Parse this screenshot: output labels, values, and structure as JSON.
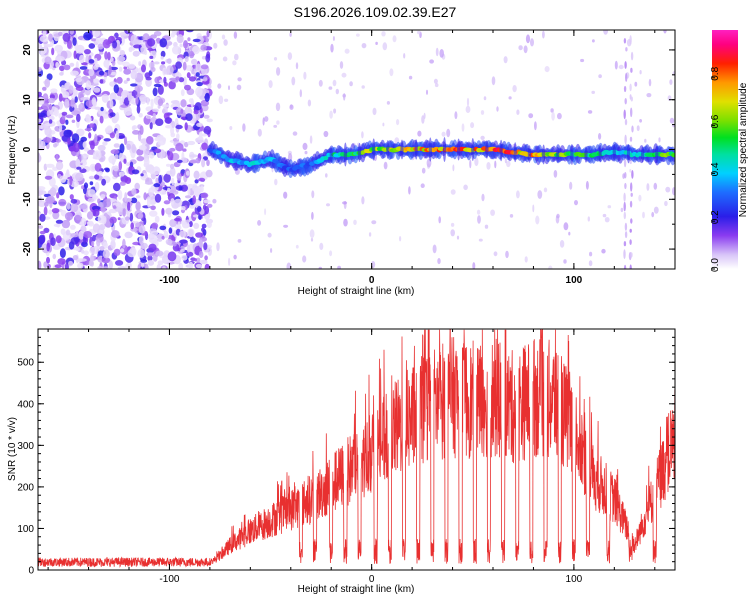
{
  "title": "S196.2026.109.02.39.E27",
  "chart_data": [
    {
      "type": "heatmap",
      "name": "spectrogram",
      "xlabel": "Height of straight line (km)",
      "ylabel": "Frequency (Hz)",
      "xlim": [
        -165,
        150
      ],
      "ylim": [
        -24,
        24
      ],
      "xticks": [
        -100,
        0,
        100
      ],
      "xtick_labels": [
        "-100",
        "0",
        "100"
      ],
      "yticks": [
        -20,
        -10,
        0,
        10,
        20
      ],
      "ytick_labels": [
        "-20",
        "-10",
        "0",
        "10",
        "20"
      ],
      "noise_region_x": [
        -165,
        -80
      ],
      "signal_track": {
        "x": [
          -80,
          -70,
          -60,
          -50,
          -40,
          -30,
          -20,
          -10,
          0,
          10,
          20,
          30,
          40,
          50,
          60,
          70,
          80,
          90,
          100,
          110,
          120,
          130,
          140,
          150
        ],
        "freq": [
          0,
          -2,
          -3,
          -2,
          -4,
          -3,
          -1,
          -1,
          0,
          0,
          0,
          0,
          0,
          0,
          0,
          -0.5,
          -1,
          -1,
          -1,
          -1,
          -0.5,
          -1,
          -1,
          -1
        ],
        "amplitude": [
          0.35,
          0.4,
          0.45,
          0.4,
          0.3,
          0.35,
          0.5,
          0.6,
          0.7,
          0.75,
          0.8,
          0.85,
          0.9,
          0.85,
          0.9,
          0.85,
          0.8,
          0.7,
          0.6,
          0.55,
          0.45,
          0.5,
          0.6,
          0.65
        ]
      },
      "colorbar": {
        "label": "Normalized spectral amplitude",
        "range": [
          0,
          1
        ],
        "ticks": [
          0.0,
          0.2,
          0.4,
          0.6,
          0.8
        ],
        "tick_labels": [
          "0.0",
          "0.2",
          "0.4",
          "0.6",
          "0.8"
        ]
      }
    },
    {
      "type": "line",
      "name": "snr",
      "xlabel": "Height of straight line (km)",
      "ylabel": "SNR (10 * v/v)",
      "xlim": [
        -165,
        150
      ],
      "ylim": [
        0,
        580
      ],
      "xticks": [
        -100,
        0,
        100
      ],
      "xtick_labels": [
        "-100",
        "0",
        "100"
      ],
      "yticks": [
        0,
        100,
        200,
        300,
        400,
        500
      ],
      "ytick_labels": [
        "0",
        "100",
        "200",
        "300",
        "400",
        "500"
      ],
      "color": "#e83030",
      "envelope": {
        "x": [
          -165,
          -80,
          -75,
          -70,
          -60,
          -50,
          -40,
          -30,
          -20,
          -10,
          0,
          10,
          20,
          30,
          40,
          50,
          60,
          70,
          80,
          90,
          100,
          110,
          120,
          130,
          140,
          150
        ],
        "y": [
          18,
          20,
          40,
          70,
          110,
          140,
          170,
          200,
          240,
          290,
          330,
          390,
          430,
          470,
          490,
          480,
          490,
          460,
          490,
          480,
          400,
          260,
          200,
          70,
          220,
          380
        ]
      },
      "dip_x": [
        -35,
        -28,
        -20,
        -13,
        -6,
        2,
        9,
        16,
        23,
        30,
        37,
        44,
        51,
        58,
        65,
        72,
        79,
        86,
        93,
        100,
        107,
        117,
        128,
        140
      ]
    }
  ]
}
